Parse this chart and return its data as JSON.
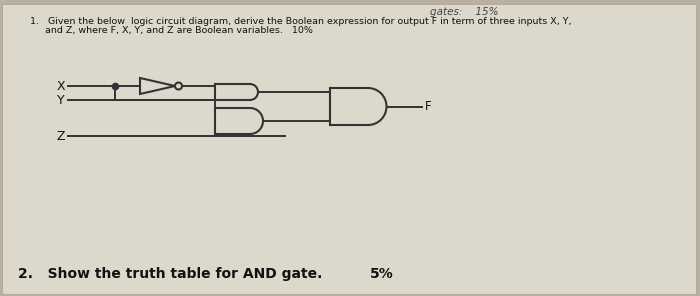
{
  "bg_color": "#b8b0a0",
  "paper_color": "#ddd8cc",
  "header_text": "gates:    15%",
  "q1_line1": "1.   Given the below  logic circuit diagram, derive the Boolean expression for output F in term of three inputs X, Y,",
  "q1_line2": "     and Z, where F, X, Y, and Z are Boolean variables.   10%",
  "q2_text": "2.   Show the truth table for AND gate.",
  "q2_pct": "5%",
  "text_color": "#111111",
  "circuit_color": "#333333",
  "label_X": "X",
  "label_Y": "Y",
  "label_Z": "Z",
  "label_F": "F",
  "wire_lw": 1.4,
  "gate_lw": 1.5
}
